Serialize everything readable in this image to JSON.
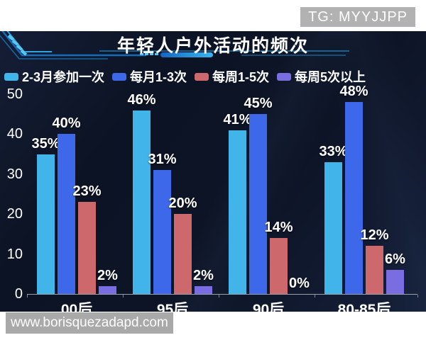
{
  "watermarks": {
    "top": "TG: MYYJJPP",
    "bottom": "www.borisquezadapd.com"
  },
  "chart_data": {
    "type": "bar",
    "title": "年轻人户外活动的频次",
    "categories": [
      "00后",
      "95后",
      "90后",
      "80-85后"
    ],
    "series": [
      {
        "name": "2-3月参加一次",
        "color": "#41b4e9",
        "values": [
          35,
          46,
          41,
          33
        ]
      },
      {
        "name": "每月1-3次",
        "color": "#3d68e9",
        "values": [
          40,
          31,
          45,
          48
        ]
      },
      {
        "name": "每周1-5次",
        "color": "#cd686d",
        "values": [
          23,
          20,
          14,
          12
        ]
      },
      {
        "name": "每周5次以上",
        "color": "#7a6de2",
        "values": [
          2,
          2,
          0,
          6
        ]
      }
    ],
    "data_labels": true,
    "data_label_suffix": "%",
    "ylim": [
      0,
      50
    ],
    "yticks": [
      0,
      10,
      20,
      30,
      40,
      50
    ],
    "grid": false,
    "legend_position": "top-left",
    "background": "#0d1426",
    "accent_color": "#2fa6e0"
  }
}
